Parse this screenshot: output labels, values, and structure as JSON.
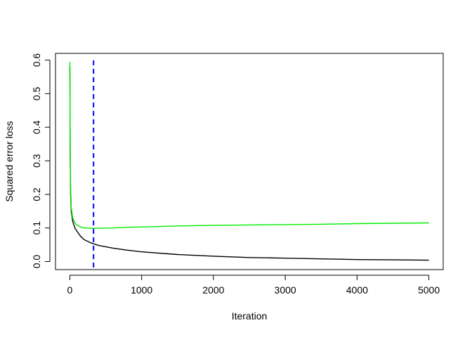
{
  "chart_data": {
    "type": "line",
    "title": "",
    "xlabel": "Iteration",
    "ylabel": "Squared error loss",
    "xlim": [
      -200,
      5200
    ],
    "ylim": [
      -0.024,
      0.62
    ],
    "x_ticks": [
      "0",
      "1000",
      "2000",
      "3000",
      "4000",
      "5000"
    ],
    "y_ticks": [
      "0.0",
      "0.1",
      "0.2",
      "0.3",
      "0.4",
      "0.5",
      "0.6"
    ],
    "grid": false,
    "legend": "none",
    "vline": {
      "x": 330,
      "color": "#0000ff",
      "style": "dashed"
    },
    "series": [
      {
        "color": "#000000",
        "x": [
          1,
          5,
          10,
          20,
          40,
          70,
          100,
          150,
          200,
          300,
          400,
          600,
          800,
          1000,
          1500,
          2000,
          2500,
          3000,
          3500,
          4000,
          4500,
          5000
        ],
        "y": [
          0.58,
          0.3,
          0.2,
          0.15,
          0.12,
          0.1,
          0.09,
          0.075,
          0.065,
          0.055,
          0.048,
          0.04,
          0.034,
          0.029,
          0.021,
          0.016,
          0.012,
          0.01,
          0.008,
          0.006,
          0.005,
          0.004
        ]
      },
      {
        "color": "#00ee00",
        "x": [
          1,
          5,
          10,
          20,
          40,
          70,
          100,
          150,
          200,
          300,
          400,
          600,
          800,
          1000,
          1500,
          2000,
          2500,
          3000,
          3500,
          4000,
          4500,
          5000
        ],
        "y": [
          0.595,
          0.33,
          0.22,
          0.16,
          0.13,
          0.115,
          0.108,
          0.103,
          0.1,
          0.099,
          0.099,
          0.1,
          0.102,
          0.103,
          0.106,
          0.108,
          0.109,
          0.11,
          0.111,
          0.113,
          0.114,
          0.115
        ]
      }
    ]
  }
}
